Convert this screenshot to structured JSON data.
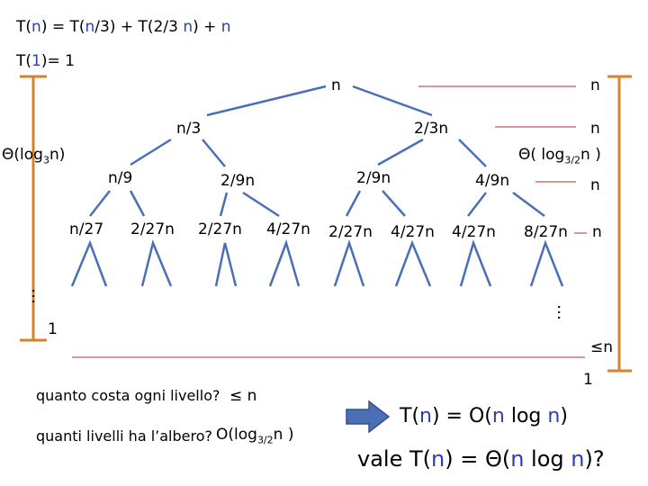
{
  "recurrence": {
    "lhs": "T(",
    "var1": "n",
    "mid1": ") = T(",
    "var2": "n",
    "mid2": "/3) + T(2/3 ",
    "var3": "n",
    "mid3": ") + ",
    "var4": "n"
  },
  "base_case": {
    "pre": "T(",
    "var": "1",
    "post": ")= 1"
  },
  "tree": {
    "root": "n",
    "level1": [
      "n/3",
      "2/3n"
    ],
    "level2": [
      "n/9",
      "2/9n",
      "2/9n",
      "4/9n"
    ],
    "level3": [
      "n/27",
      "2/27n",
      "2/27n",
      "4/27n",
      "2/27n",
      "4/27n",
      "4/27n",
      "8/27n"
    ],
    "dots_left": "…",
    "dots_right": "…",
    "leaf_left": "1",
    "leaf_right": "1"
  },
  "level_costs": [
    "n",
    "n",
    "n",
    "n",
    "≤n"
  ],
  "left_height": {
    "prefix": "Θ(log",
    "sub": "3",
    "mid": "n",
    "suffix": ")"
  },
  "right_height": {
    "prefix": "Θ( log",
    "sub": "3/2",
    "mid": "n",
    "suffix": " )"
  },
  "questions": {
    "q1": "quanto costa ogni livello?",
    "a1": "≤ n",
    "q2": "quanti livelli ha l’albero?",
    "a2_prefix": "O(log",
    "a2_sub": "3/2",
    "a2_suffix": "n )"
  },
  "conclusion": {
    "line1": {
      "a": "T(",
      "v1": "n",
      "b": ") = O(",
      "v2": "n",
      "c": " log ",
      "v3": "n",
      "d": ")"
    },
    "line2": {
      "a": "vale T(",
      "v1": "n",
      "b": ") = Θ(",
      "v2": "n",
      "c": " log ",
      "v3": "n",
      "d": ")?"
    }
  },
  "colors": {
    "text": "#000000",
    "variable": "#2b3fb0",
    "bracket": "#d9822b",
    "arrow": "#4a6fb5",
    "lines": "#000000",
    "guide_lines": "#b03030"
  }
}
